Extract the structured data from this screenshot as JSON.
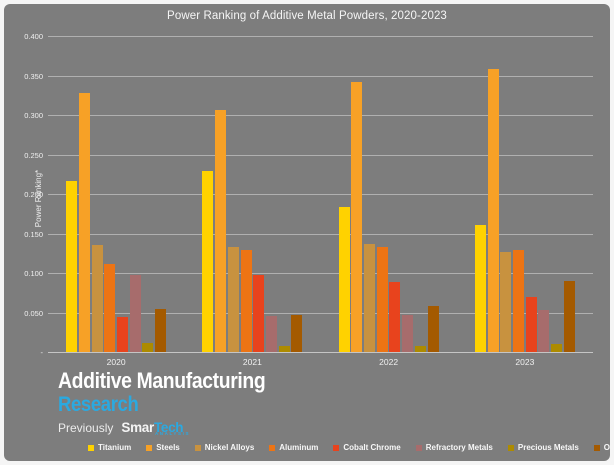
{
  "title": "Power Ranking of Additive Metal Powders, 2020-2023",
  "chart_data": {
    "type": "bar",
    "title": "Power Ranking of Additive Metal Powders, 2020-2023",
    "xlabel": "",
    "ylabel": "Power Ranking*",
    "ylim": [
      0,
      0.4
    ],
    "grid": true,
    "legend_position": "bottom",
    "background_color": "#7d7d7d",
    "categories": [
      "2020",
      "2021",
      "2022",
      "2023"
    ],
    "y_ticks": [
      {
        "label": "0.400",
        "value": 0.4
      },
      {
        "label": "0.350",
        "value": 0.35
      },
      {
        "label": "0.300",
        "value": 0.3
      },
      {
        "label": "0.250",
        "value": 0.25
      },
      {
        "label": "0.200",
        "value": 0.2
      },
      {
        "label": "0.150",
        "value": 0.15
      },
      {
        "label": "0.100",
        "value": 0.1
      },
      {
        "label": "0.050",
        "value": 0.05
      },
      {
        "label": "-",
        "value": 0.0
      }
    ],
    "series": [
      {
        "name": "Titanium",
        "color": "#ffd200",
        "values": [
          0.217,
          0.229,
          0.183,
          0.161
        ]
      },
      {
        "name": "Steels",
        "color": "#f7a126",
        "values": [
          0.328,
          0.306,
          0.342,
          0.358
        ]
      },
      {
        "name": "Nickel Alloys",
        "color": "#c8923f",
        "values": [
          0.135,
          0.133,
          0.137,
          0.126
        ]
      },
      {
        "name": "Aluminum",
        "color": "#ed7414",
        "values": [
          0.111,
          0.129,
          0.133,
          0.129
        ]
      },
      {
        "name": "Cobalt Chrome",
        "color": "#e8431d",
        "values": [
          0.044,
          0.097,
          0.088,
          0.07
        ]
      },
      {
        "name": "Refractory Metals",
        "color": "#a76c6c",
        "values": [
          0.098,
          0.046,
          0.047,
          0.053
        ]
      },
      {
        "name": "Precious Metals",
        "color": "#ad8b00",
        "values": [
          0.012,
          0.008,
          0.008,
          0.01
        ]
      },
      {
        "name": "Others",
        "color": "#a45a00",
        "values": [
          0.054,
          0.047,
          0.058,
          0.09
        ]
      }
    ]
  },
  "branding": {
    "line1": "Additive Manufacturing",
    "line2": "Research",
    "previously": "Previously",
    "brand_name_a": "Smar",
    "brand_name_b": "Tech",
    "brand_sub": "ANALYSIS",
    "accent_color": "#2ba9e0"
  }
}
